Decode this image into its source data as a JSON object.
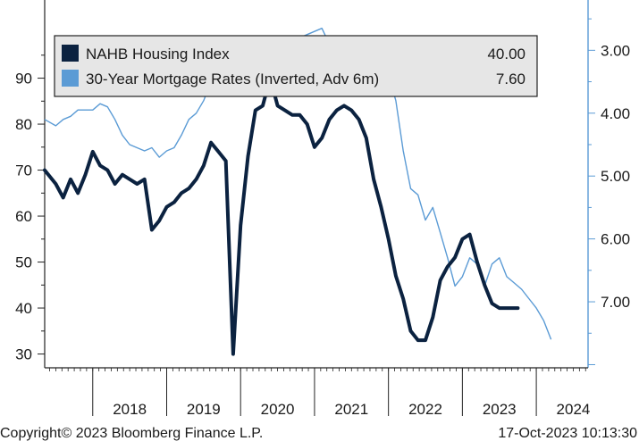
{
  "chart_data": {
    "type": "line",
    "title": "",
    "legend_position": "top-left",
    "left_axis": {
      "ylim": [
        27,
        107
      ],
      "ticks": [
        30,
        40,
        50,
        60,
        70,
        80,
        90
      ]
    },
    "right_axis": {
      "ylim": [
        8.05,
        2.2
      ],
      "ticks": [
        "3.00",
        "4.00",
        "5.00",
        "6.00",
        "7.00"
      ],
      "inverted": true
    },
    "x_axis": {
      "xlim": [
        2017.35,
        2024.7
      ],
      "tick_labels": [
        "2018",
        "2019",
        "2020",
        "2021",
        "2022",
        "2023",
        "2024"
      ],
      "divider_years": [
        2018,
        2019,
        2020,
        2021,
        2022,
        2023,
        2024
      ]
    },
    "series": [
      {
        "name": "NAHB Housing Index",
        "value_label": "40.00",
        "color": "#0b2240",
        "axis": "left",
        "x": [
          2017.35,
          2017.5,
          2017.6,
          2017.7,
          2017.8,
          2017.9,
          2018.0,
          2018.1,
          2018.2,
          2018.3,
          2018.4,
          2018.5,
          2018.6,
          2018.7,
          2018.8,
          2018.9,
          2019.0,
          2019.1,
          2019.2,
          2019.3,
          2019.4,
          2019.5,
          2019.6,
          2019.7,
          2019.8,
          2019.9,
          2020.0,
          2020.1,
          2020.2,
          2020.3,
          2020.4,
          2020.5,
          2020.6,
          2020.7,
          2020.8,
          2020.9,
          2021.0,
          2021.1,
          2021.2,
          2021.3,
          2021.4,
          2021.5,
          2021.6,
          2021.7,
          2021.8,
          2021.9,
          2022.0,
          2022.1,
          2022.2,
          2022.3,
          2022.4,
          2022.5,
          2022.6,
          2022.7,
          2022.8,
          2022.9,
          2023.0,
          2023.1,
          2023.2,
          2023.3,
          2023.4,
          2023.5,
          2023.6,
          2023.75
        ],
        "values": [
          70,
          67,
          64,
          68,
          65,
          69,
          74,
          71,
          70,
          67,
          69,
          68,
          67,
          68,
          57,
          59,
          62,
          63,
          65,
          66,
          68,
          71,
          76,
          74,
          72,
          30,
          58,
          73,
          83,
          84,
          90,
          84,
          83,
          82,
          82,
          80,
          75,
          77,
          81,
          83,
          84,
          83,
          81,
          77,
          68,
          62,
          55,
          47,
          42,
          35,
          33,
          33,
          38,
          46,
          49,
          51,
          55,
          56,
          50,
          45,
          41,
          40,
          40,
          40
        ]
      },
      {
        "name": "30-Year Mortgage Rates (Inverted, Adv 6m)",
        "value_label": "7.60",
        "color": "#5b9bd5",
        "axis": "right",
        "x": [
          2017.35,
          2017.5,
          2017.6,
          2017.7,
          2017.8,
          2017.9,
          2018.0,
          2018.1,
          2018.2,
          2018.3,
          2018.4,
          2018.5,
          2018.6,
          2018.7,
          2018.8,
          2018.9,
          2019.0,
          2019.1,
          2019.2,
          2019.3,
          2019.4,
          2019.5,
          2019.6,
          2019.7,
          2019.8,
          2019.9,
          2020.0,
          2020.1,
          2020.2,
          2020.3,
          2020.4,
          2020.5,
          2020.6,
          2020.7,
          2020.8,
          2020.9,
          2021.0,
          2021.1,
          2021.2,
          2021.3,
          2021.4,
          2021.5,
          2021.6,
          2021.7,
          2021.8,
          2021.9,
          2022.0,
          2022.1,
          2022.2,
          2022.3,
          2022.4,
          2022.5,
          2022.6,
          2022.7,
          2022.8,
          2022.9,
          2023.0,
          2023.1,
          2023.2,
          2023.3,
          2023.4,
          2023.5,
          2023.6,
          2023.7,
          2023.8,
          2023.9,
          2024.0,
          2024.1,
          2024.2
        ],
        "values": [
          4.1,
          4.2,
          4.1,
          4.05,
          3.95,
          3.95,
          3.95,
          3.85,
          3.9,
          4.1,
          4.35,
          4.5,
          4.55,
          4.6,
          4.55,
          4.7,
          4.6,
          4.55,
          4.35,
          4.1,
          4.0,
          3.8,
          3.5,
          3.5,
          3.6,
          3.6,
          3.7,
          3.6,
          3.55,
          3.45,
          3.3,
          3.2,
          3.1,
          2.95,
          2.8,
          2.75,
          2.7,
          2.65,
          2.9,
          3.05,
          3.1,
          3.0,
          3.05,
          3.15,
          3.1,
          3.2,
          3.4,
          3.8,
          4.6,
          5.2,
          5.3,
          5.7,
          5.5,
          5.9,
          6.3,
          6.75,
          6.6,
          6.3,
          6.4,
          6.75,
          6.4,
          6.3,
          6.6,
          6.7,
          6.8,
          6.95,
          7.1,
          7.3,
          7.6
        ]
      }
    ]
  },
  "footer": {
    "copyright": "Copyright© 2023 Bloomberg Finance L.P.",
    "timestamp": "17-Oct-2023 10:13:30"
  }
}
